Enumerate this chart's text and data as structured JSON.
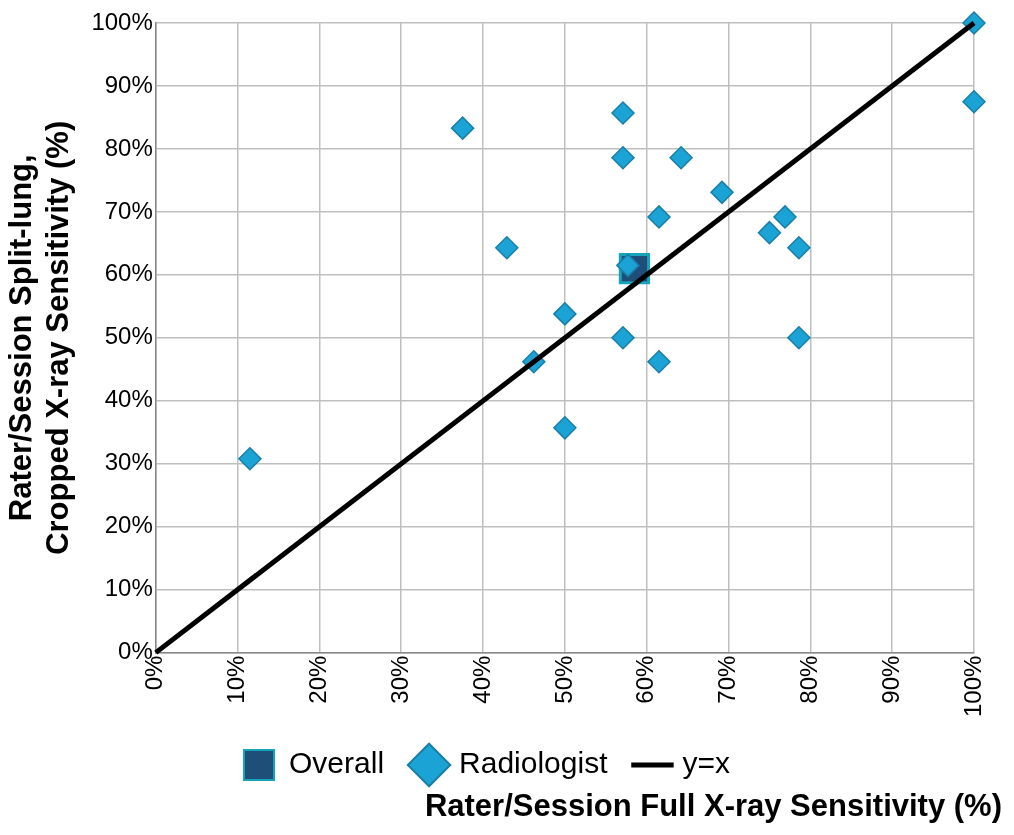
{
  "chart_data": {
    "type": "scatter",
    "xlabel": "Rater/Session Full X-ray Sensitivity (%)",
    "ylabel": "Rater/Session Split-lung,\nCropped X-ray Sensitivity (%)",
    "xlim": [
      0,
      100
    ],
    "ylim": [
      0,
      100
    ],
    "xticks": [
      {
        "value": 0,
        "label": "0%"
      },
      {
        "value": 10,
        "label": "10%"
      },
      {
        "value": 20,
        "label": "20%"
      },
      {
        "value": 30,
        "label": "30%"
      },
      {
        "value": 40,
        "label": "40%"
      },
      {
        "value": 50,
        "label": "50%"
      },
      {
        "value": 60,
        "label": "60%"
      },
      {
        "value": 70,
        "label": "70%"
      },
      {
        "value": 80,
        "label": "80%"
      },
      {
        "value": 90,
        "label": "90%"
      },
      {
        "value": 100,
        "label": "100%"
      }
    ],
    "yticks": [
      {
        "value": 0,
        "label": "0%"
      },
      {
        "value": 10,
        "label": "10%"
      },
      {
        "value": 20,
        "label": "20%"
      },
      {
        "value": 30,
        "label": "30%"
      },
      {
        "value": 40,
        "label": "40%"
      },
      {
        "value": 50,
        "label": "50%"
      },
      {
        "value": 60,
        "label": "60%"
      },
      {
        "value": 70,
        "label": "70%"
      },
      {
        "value": 80,
        "label": "80%"
      },
      {
        "value": 90,
        "label": "90%"
      },
      {
        "value": 100,
        "label": "100%"
      }
    ],
    "grid": true,
    "legend": "bottom",
    "series": [
      {
        "name": "Overall",
        "type": "scatter",
        "marker": "square",
        "color": "#1f4e79",
        "x": [
          58.5
        ],
        "values": [
          61.0
        ]
      },
      {
        "name": "Radiologist",
        "type": "scatter",
        "marker": "diamond",
        "color": "#1aa3d4",
        "x": [
          37.5,
          57.1,
          57.1,
          64.2,
          100,
          100,
          69.2,
          61.5,
          76.9,
          75,
          78.6,
          42.9,
          57.7,
          50,
          57.1,
          78.6,
          46.2,
          61.5,
          50,
          11.5
        ],
        "values": [
          83.3,
          85.7,
          78.6,
          78.6,
          100,
          87.5,
          73.1,
          69.2,
          69.2,
          66.7,
          64.3,
          64.3,
          61.5,
          53.8,
          50,
          50,
          46.2,
          46.2,
          35.7,
          30.8
        ]
      },
      {
        "name": "y=x",
        "type": "line",
        "marker": "none",
        "color": "#000000",
        "x": [
          0,
          100
        ],
        "values": [
          0,
          100
        ]
      }
    ]
  }
}
